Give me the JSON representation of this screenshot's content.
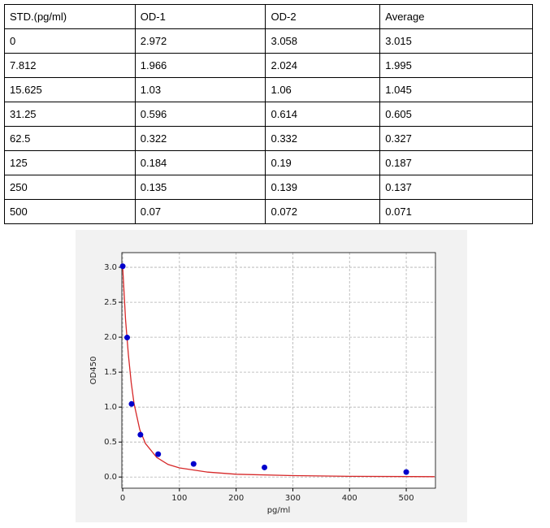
{
  "table": {
    "header": [
      "STD.(pg/ml)",
      "OD-1",
      "OD-2",
      "Average"
    ],
    "rows": [
      [
        "0",
        "2.972",
        "3.058",
        "3.015"
      ],
      [
        "7.812",
        "1.966",
        "2.024",
        "1.995"
      ],
      [
        "15.625",
        "1.03",
        "1.06",
        "1.045"
      ],
      [
        "31.25",
        "0.596",
        "0.614",
        "0.605"
      ],
      [
        "62.5",
        "0.322",
        "0.332",
        "0.327"
      ],
      [
        "125",
        "0.184",
        "0.19",
        "0.187"
      ],
      [
        "250",
        "0.135",
        "0.139",
        "0.137"
      ],
      [
        "500",
        "0.07",
        "0.072",
        "0.071"
      ]
    ]
  },
  "chart_data": {
    "type": "scatter",
    "xlabel": "pg/ml",
    "ylabel": "OD450",
    "series": [
      {
        "type": "scatter",
        "color": "#0000cc",
        "x": [
          0,
          7.812,
          15.625,
          31.25,
          62.5,
          125,
          250,
          500
        ],
        "values": [
          3.015,
          1.995,
          1.045,
          0.605,
          0.327,
          0.187,
          0.137,
          0.071
        ]
      },
      {
        "type": "line",
        "color": "#d62728",
        "x": [
          0,
          5,
          10,
          15,
          20,
          30,
          40,
          60,
          80,
          100,
          150,
          200,
          300,
          400,
          550
        ],
        "values": [
          3.0,
          2.25,
          1.75,
          1.35,
          1.05,
          0.68,
          0.48,
          0.28,
          0.18,
          0.13,
          0.07,
          0.04,
          0.02,
          0.01,
          0.005
        ]
      }
    ],
    "xlim": [
      -1.5,
      551.5
    ],
    "ylim": [
      -0.16,
      3.21
    ],
    "xticks": [
      0,
      100,
      200,
      300,
      400,
      500
    ],
    "yticks": [
      {
        "value": 0,
        "label": "0.0"
      },
      {
        "value": 0.5,
        "label": "0.5"
      },
      {
        "value": 1,
        "label": "1.0"
      },
      {
        "value": 1.5,
        "label": "1.5"
      },
      {
        "value": 2,
        "label": "2.0"
      },
      {
        "value": 2.5,
        "label": "2.5"
      },
      {
        "value": 3,
        "label": "3.0"
      }
    ],
    "grid": true
  }
}
